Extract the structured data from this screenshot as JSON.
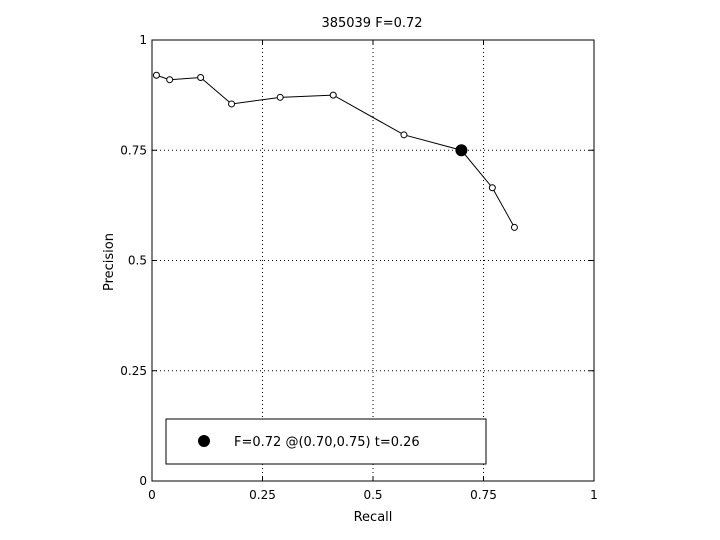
{
  "chart_data": {
    "type": "line",
    "title": "385039 F=0.72",
    "xlabel": "Recall",
    "ylabel": "Precision",
    "xlim": [
      0,
      1
    ],
    "ylim": [
      0,
      1
    ],
    "x_ticks": [
      0,
      0.25,
      0.5,
      0.75,
      1
    ],
    "y_ticks": [
      0,
      0.25,
      0.5,
      0.75,
      1
    ],
    "x_tick_labels": [
      "0",
      "0.25",
      "0.5",
      "0.75",
      "1"
    ],
    "y_tick_labels": [
      "0",
      "0.25",
      "0.5",
      "0.75",
      "1"
    ],
    "grid": true,
    "legend_position": "bottom-left",
    "series": [
      {
        "x": [
          0.01,
          0.04,
          0.11,
          0.18,
          0.29,
          0.41,
          0.57,
          0.7,
          0.77,
          0.82
        ],
        "y": [
          0.92,
          0.91,
          0.915,
          0.855,
          0.87,
          0.875,
          0.785,
          0.75,
          0.665,
          0.575
        ]
      }
    ],
    "highlight_point": {
      "x": 0.7,
      "y": 0.75,
      "label": "F=0.72 @(0.70,0.75) t=0.26"
    }
  }
}
